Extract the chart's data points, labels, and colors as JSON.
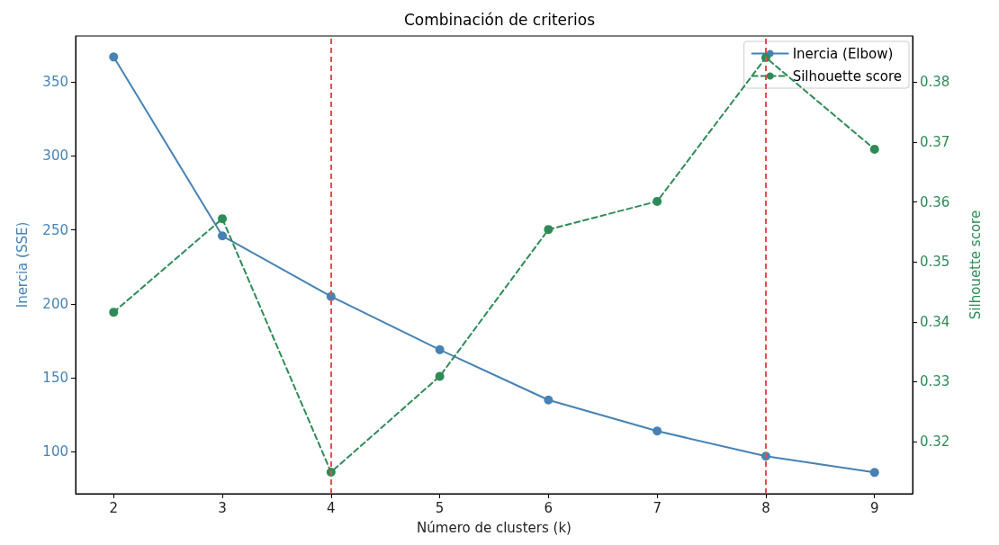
{
  "chart_data": {
    "type": "line",
    "title": "Combinación de criterios",
    "xlabel": "Número de clusters (k)",
    "ylabel": "Inercia (SSE)",
    "y2label": "Silhouette score",
    "x": [
      2,
      3,
      4,
      5,
      6,
      7,
      8,
      9
    ],
    "series": [
      {
        "name": "Inercia (Elbow)",
        "color": "#4682b4",
        "values": [
          367,
          246,
          205,
          169,
          135,
          114,
          97,
          86
        ],
        "line_style": "solid"
      },
      {
        "name": "Silhouette score",
        "color": "#2e8b57",
        "values": [
          0.3416,
          0.3572,
          0.3149,
          0.3309,
          0.3554,
          0.3601,
          0.3841,
          0.3688
        ],
        "axis": "y2",
        "line_style": "dashed"
      }
    ],
    "xlim": [
      1.65,
      9.35
    ],
    "xticks": [
      2,
      3,
      4,
      5,
      6,
      7,
      8,
      9
    ],
    "ylim": [
      71.6,
      381.2
    ],
    "yticks": [
      100,
      150,
      200,
      250,
      300,
      350
    ],
    "y2lim": [
      0.3113,
      0.3877
    ],
    "y2ticks": [
      0.32,
      0.33,
      0.34,
      0.35,
      0.36,
      0.37,
      0.38
    ],
    "ref_lines": [
      {
        "axis": "x",
        "value": 4,
        "color": "#d9534f",
        "line_style": "dashed"
      },
      {
        "axis": "x",
        "value": 8,
        "color": "#d9534f",
        "line_style": "dashed"
      }
    ],
    "marker": "circle",
    "grid": false,
    "legend": "top right"
  }
}
